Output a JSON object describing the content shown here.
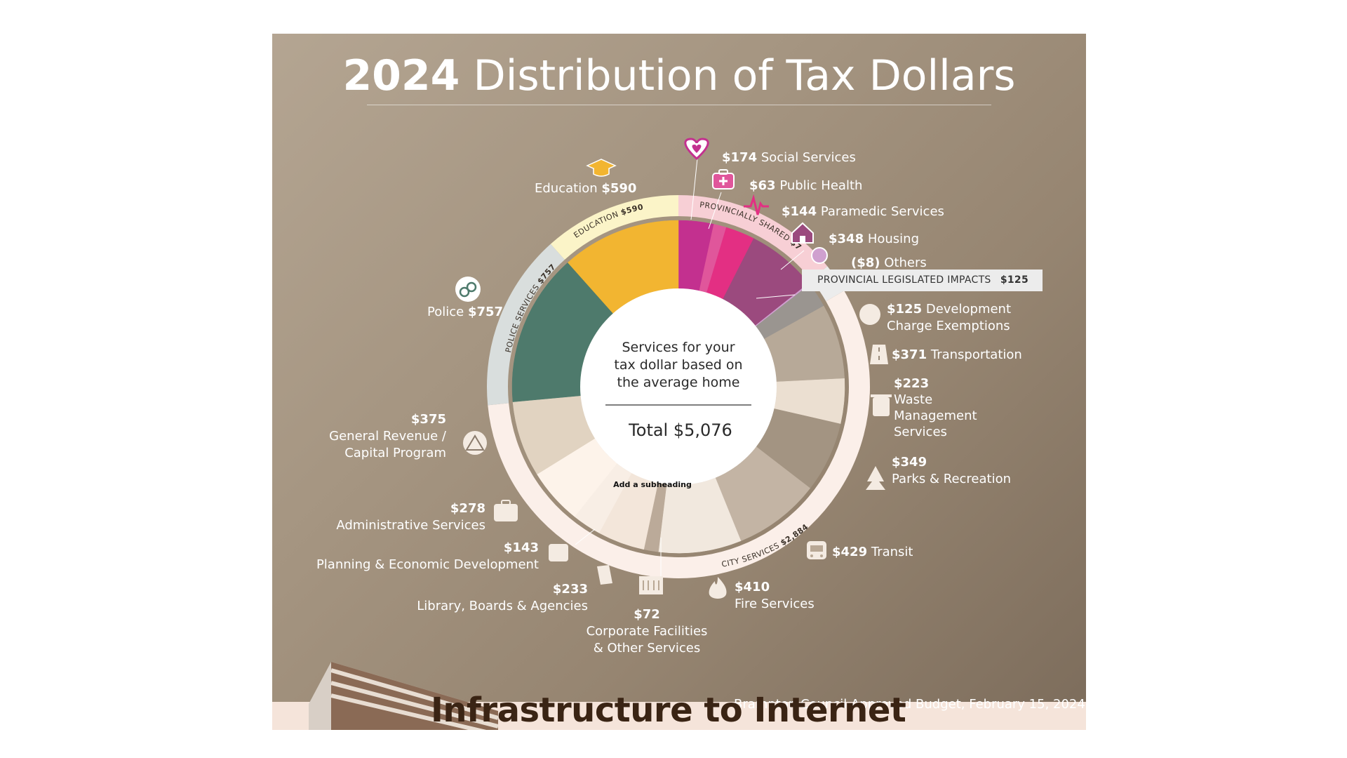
{
  "header": {
    "title_year": "2024",
    "title_rest": "Distribution of Tax Dollars"
  },
  "center": {
    "lines": [
      "Services for your",
      "tax dollar based on",
      "the average home"
    ],
    "total": "Total $5,076",
    "subheading": "Add a subheading"
  },
  "group_labels": {
    "education": {
      "name": "EDUCATION",
      "amount": "$590"
    },
    "provincially_shared": {
      "name": "PROVINCIALLY SHARED",
      "amount": "$720"
    },
    "police": {
      "name": "POLICE SERVICES",
      "amount": "$757"
    },
    "city": {
      "name": "CITY SERVICES",
      "amount": "$2,884"
    }
  },
  "provincial_legislated": {
    "name": "PROVINCIAL LEGISLATED IMPACTS",
    "amount": "$125"
  },
  "labels": {
    "education": {
      "name": "Education",
      "amount": "$590"
    },
    "police": {
      "name": "Police",
      "amount": "$757"
    },
    "social": {
      "amount": "$174",
      "name": "Social Services"
    },
    "health": {
      "amount": "$63",
      "name": "Public Health"
    },
    "paramedic": {
      "amount": "$144",
      "name": "Paramedic Services"
    },
    "housing": {
      "amount": "$348",
      "name": "Housing"
    },
    "others": {
      "amount": "($8)",
      "name": "Others"
    },
    "development": {
      "amount": "$125",
      "name_1": "Development",
      "name_2": "Charge Exemptions"
    },
    "transportation": {
      "amount": "$371",
      "name": "Transportation"
    },
    "waste": {
      "amount": "$223",
      "name_1": "Waste",
      "name_2": "Management",
      "name_3": "Services"
    },
    "parks": {
      "amount": "$349",
      "name": "Parks & Recreation"
    },
    "transit": {
      "amount": "$429",
      "name": "Transit"
    },
    "fire": {
      "amount": "$410",
      "name": "Fire Services"
    },
    "corporate": {
      "amount": "$72",
      "name_1": "Corporate Facilities",
      "name_2": "& Other Services"
    },
    "library": {
      "amount": "$233",
      "name": "Library, Boards & Agencies"
    },
    "planning": {
      "amount": "$143",
      "name": "Planning & Economic Development"
    },
    "admin": {
      "amount": "$278",
      "name": "Administrative Services"
    },
    "general": {
      "amount": "$375",
      "name_1": "General Revenue /",
      "name_2": "Capital Program"
    }
  },
  "footnote": "Brampton Council Approved Budget, February 15, 2024",
  "overlay_text": "Infrastructure to Internet",
  "chart_data": {
    "type": "pie",
    "title": "2024 Distribution of Tax Dollars",
    "total": 5076,
    "categories": [
      "Social Services",
      "Public Health",
      "Paramedic Services",
      "Housing",
      "Others",
      "Development Charge Exemptions",
      "Transportation",
      "Waste Management Services",
      "Parks & Recreation",
      "Transit",
      "Fire Services",
      "Corporate Facilities & Other Services",
      "Library, Boards & Agencies",
      "Planning & Economic Development",
      "Administrative Services",
      "General Revenue / Capital Program",
      "Police",
      "Education"
    ],
    "values": [
      174,
      63,
      144,
      348,
      -8,
      125,
      371,
      223,
      349,
      429,
      410,
      72,
      233,
      143,
      278,
      375,
      757,
      590
    ],
    "colors": [
      "#c3308f",
      "#e0569b",
      "#e32f83",
      "#9b4a7e",
      "#cfa0cf",
      "#9a9590",
      "#b7a998",
      "#ebdfd1",
      "#a39482",
      "#c3b4a4",
      "#f1e8de",
      "#bbaa99",
      "#f3e6da",
      "#f8eee5",
      "#fdf3ea",
      "#e1d3c1",
      "#4e7a6c",
      "#f2b531"
    ],
    "groups": [
      {
        "name": "PROVINCIALLY SHARED",
        "value": 720,
        "color": "#f7cfd5"
      },
      {
        "name": "PROVINCIAL LEGISLATED IMPACTS",
        "value": 125,
        "color": "#ececec"
      },
      {
        "name": "CITY SERVICES",
        "value": 2884,
        "color": "#fbefe9"
      },
      {
        "name": "POLICE SERVICES",
        "value": 757,
        "color": "#d9dedd"
      },
      {
        "name": "EDUCATION",
        "value": 590,
        "color": "#fbf4c8"
      }
    ]
  }
}
